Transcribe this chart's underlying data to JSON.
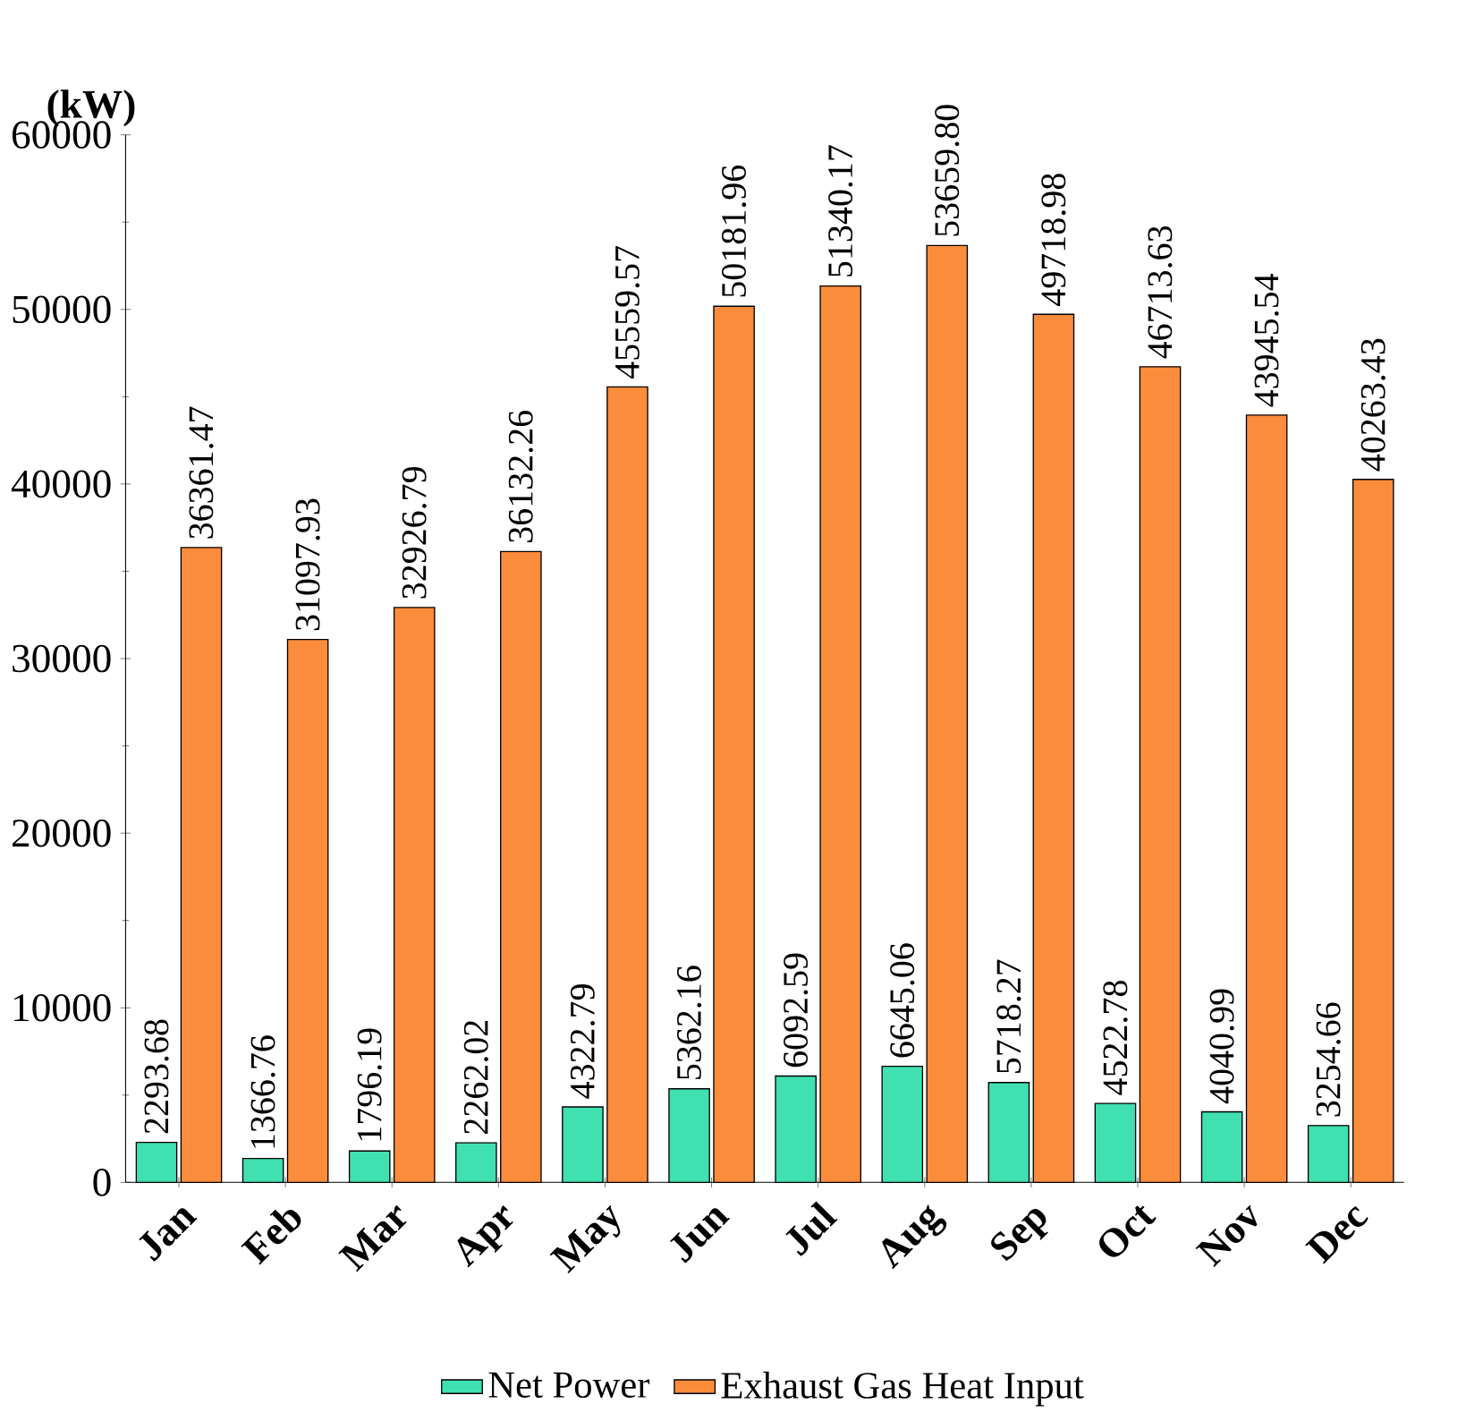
{
  "chart_data": {
    "type": "bar",
    "ylabel": "(kW)",
    "categories": [
      "Jan",
      "Feb",
      "Mar",
      "Apr",
      "May",
      "Jun",
      "Jul",
      "Aug",
      "Sep",
      "Oct",
      "Nov",
      "Dec"
    ],
    "series": [
      {
        "name": "Net Power",
        "color": "#40e0b0",
        "values": [
          2293.68,
          1366.76,
          1796.19,
          2262.02,
          4322.79,
          5362.16,
          6092.59,
          6645.06,
          5718.27,
          4522.78,
          4040.99,
          3254.66
        ],
        "value_labels": [
          "2293.68",
          "1366.76",
          "1796.19",
          "2262.02",
          "4322.79",
          "5362.16",
          "6092.59",
          "6645.06",
          "5718.27",
          "4522.78",
          "4040.99",
          "3254.66"
        ]
      },
      {
        "name": "Exhaust Gas Heat Input",
        "color": "#fb8c3c",
        "values": [
          36361.47,
          31097.93,
          32926.79,
          36132.26,
          45559.57,
          50181.96,
          51340.17,
          53659.8,
          49718.98,
          46713.63,
          43945.54,
          40263.43
        ],
        "value_labels": [
          "36361.47",
          "31097.93",
          "32926.79",
          "36132.26",
          "45559.57",
          "50181.96",
          "51340.17",
          "53659.80",
          "49718.98",
          "46713.63",
          "43945.54",
          "40263.43"
        ]
      }
    ],
    "ylim": [
      0,
      60000
    ],
    "yticks": [
      0,
      10000,
      20000,
      30000,
      40000,
      50000,
      60000
    ],
    "legend": "bottom",
    "grid": false
  }
}
